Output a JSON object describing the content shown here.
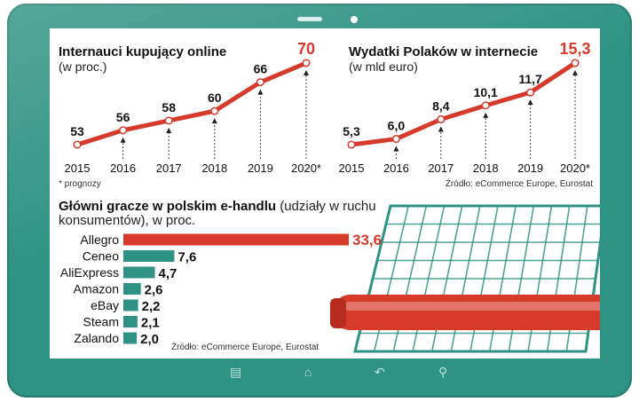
{
  "chart_data": [
    {
      "type": "line",
      "title": "Internauci kupujący online",
      "subtitle": "(w proc.)",
      "categories": [
        "2015",
        "2016",
        "2017",
        "2018",
        "2019",
        "2020*"
      ],
      "values": [
        53,
        56,
        58,
        60,
        66,
        70
      ],
      "value_labels": [
        "53",
        "56",
        "58",
        "60",
        "66",
        "70"
      ],
      "highlight_last": true,
      "note": "* prognozy",
      "grid": false,
      "color": "#d63a2a"
    },
    {
      "type": "line",
      "title": "Wydatki Polaków w internecie",
      "subtitle": "(w mld euro)",
      "categories": [
        "2015",
        "2016",
        "2017",
        "2018",
        "2019",
        "2020*"
      ],
      "values": [
        5.3,
        6.0,
        8.4,
        10.1,
        11.7,
        15.3
      ],
      "value_labels": [
        "5,3",
        "6,0",
        "8,4",
        "10,1",
        "11,7",
        "15,3"
      ],
      "highlight_last": true,
      "source": "Źródło: eCommerce Europe, Eurostat",
      "grid": false,
      "color": "#d63a2a"
    },
    {
      "type": "bar",
      "orientation": "horizontal",
      "title_bold": "Główni gracze w polskim e-handlu",
      "title_line1_rest": " (udziały w ruchu",
      "title_line2": "konsumentów), w proc.",
      "categories": [
        "Allegro",
        "Ceneo",
        "AliExpress",
        "Amazon",
        "eBay",
        "Steam",
        "Zalando"
      ],
      "values": [
        33.6,
        7.6,
        4.7,
        2.6,
        2.2,
        2.1,
        2.0
      ],
      "value_labels": [
        "33,6",
        "7,6",
        "4,7",
        "2,6",
        "2,2",
        "2,1",
        "2,0"
      ],
      "colors": [
        "#d63a2a",
        "#2e9384",
        "#2e9384",
        "#2e9384",
        "#2e9384",
        "#2e9384",
        "#2e9384"
      ],
      "source": "Źródło: eCommerce Europe, Eurostat",
      "grid": false
    }
  ],
  "colors": {
    "tablet": "#2e9384",
    "line": "#d63a2a",
    "bar_accent": "#d63a2a",
    "bar": "#2e9384",
    "cart": "#2e9384",
    "cart_handle": "#d63a2a"
  },
  "tablet": {
    "nav_icons": [
      "menu-icon",
      "home-icon",
      "back-icon",
      "search-icon"
    ]
  }
}
